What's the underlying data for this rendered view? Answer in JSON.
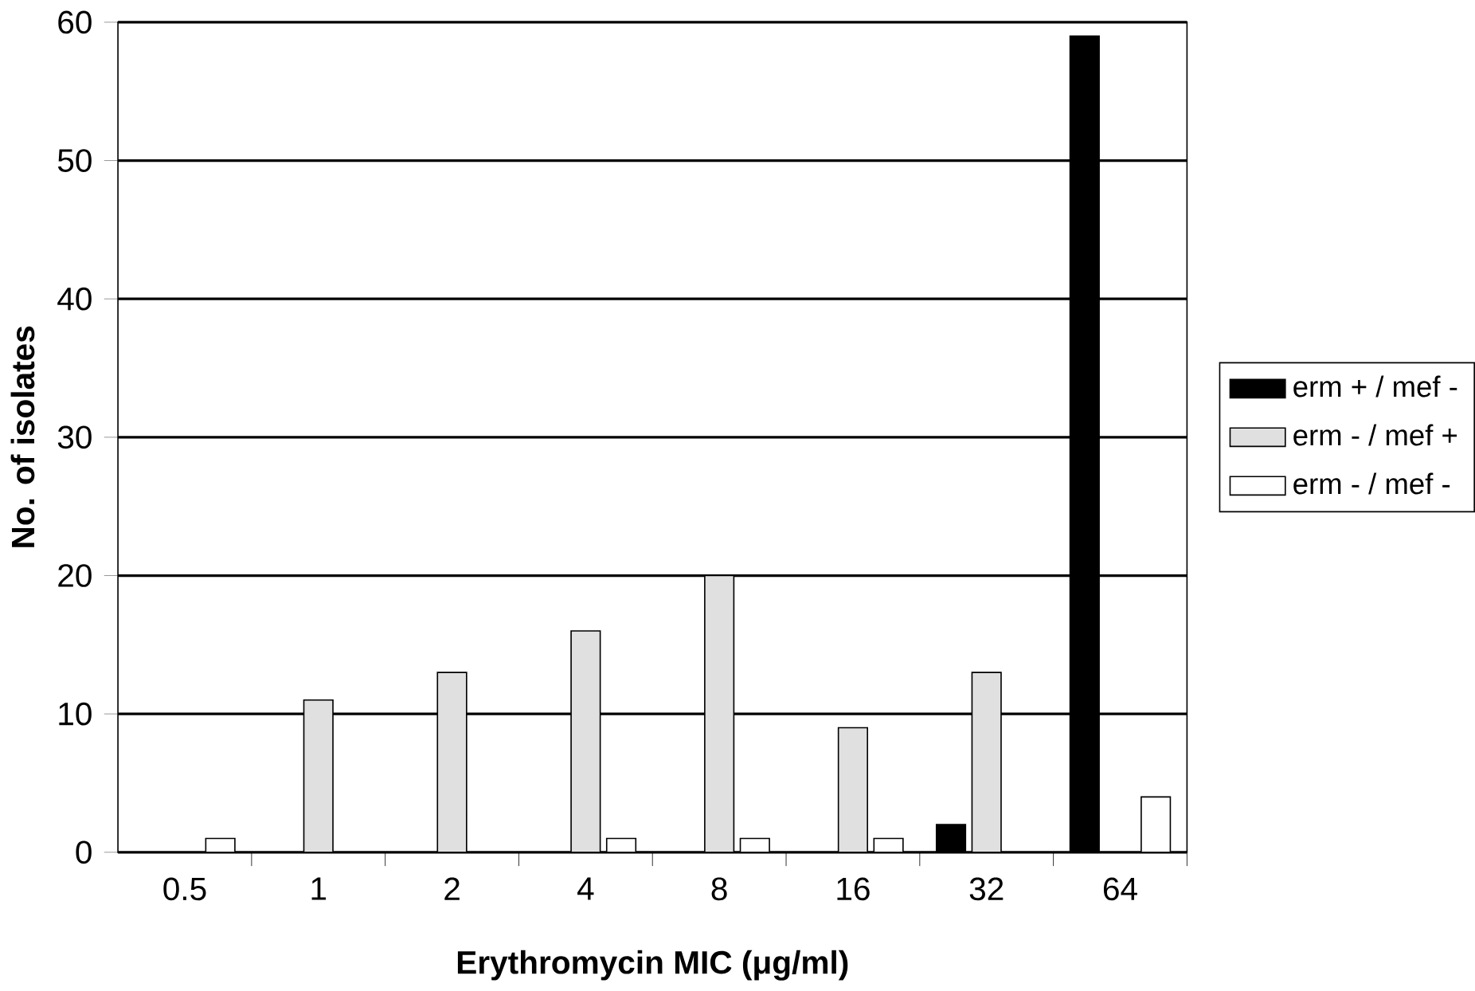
{
  "chart_data": {
    "type": "bar",
    "xlabel": "Erythromycin MIC (μg/ml)",
    "ylabel": "No. of isolates",
    "categories": [
      "0.5",
      "1",
      "2",
      "4",
      "8",
      "16",
      "32",
      "64"
    ],
    "series": [
      {
        "name": "erm + / mef -",
        "color": "#000000",
        "values": [
          null,
          null,
          null,
          null,
          null,
          null,
          2,
          59
        ]
      },
      {
        "name": "erm - / mef +",
        "color": "#e0e0e0",
        "values": [
          null,
          11,
          13,
          16,
          20,
          9,
          13,
          null
        ]
      },
      {
        "name": "erm - / mef -",
        "color": "#ffffff",
        "values": [
          1,
          null,
          null,
          1,
          1,
          1,
          null,
          4
        ]
      }
    ],
    "ylim": [
      0,
      60
    ],
    "yticks": [
      0,
      10,
      20,
      30,
      40,
      50,
      60
    ],
    "grid": "y",
    "legend": "right"
  }
}
